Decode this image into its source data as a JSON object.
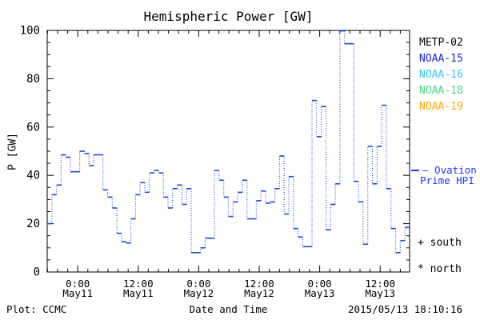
{
  "chart_data": {
    "type": "line",
    "subtype": "histogram-step",
    "title": "Hemispheric Power [GW]",
    "xlabel": "Date and Time",
    "ylabel": "P [GW]",
    "ylim": [
      0,
      100
    ],
    "y_major_step": 20,
    "y_minor_step": 5,
    "grid": "off",
    "legend_position": "right-outside",
    "x_ticks": [
      {
        "time": "0:00",
        "date": "May11"
      },
      {
        "time": "12:00",
        "date": "May11"
      },
      {
        "time": "0:00",
        "date": "May12"
      },
      {
        "time": "12:00",
        "date": "May12"
      },
      {
        "time": "0:00",
        "date": "May13"
      },
      {
        "time": "12:00",
        "date": "May13"
      }
    ],
    "x_minor_ticks_per_major": 6,
    "x_minor_tick_hours": 2,
    "satellite_legend": [
      {
        "label": "METP-02",
        "color": "#000000"
      },
      {
        "label": "NOAA-15",
        "color": "#2222dd"
      },
      {
        "label": "NOAA-16",
        "color": "#33ccff"
      },
      {
        "label": "NOAA-18",
        "color": "#44dd88"
      },
      {
        "label": "NOAA-19",
        "color": "#ffaa00"
      }
    ],
    "symbol_legend": [
      {
        "symbol": "+",
        "label": "south"
      },
      {
        "symbol": "*",
        "label": "north"
      }
    ],
    "series": [
      {
        "name": "Ovation Prime HPI",
        "color": "#2244dd",
        "line_style": "solid horizontal steps with dotted vertical connectors",
        "values": [
          20,
          32,
          36,
          48.5,
          47.5,
          41.5,
          41.5,
          50,
          49,
          44,
          48.5,
          48.5,
          34,
          31,
          26.5,
          16,
          12.5,
          12,
          22,
          32,
          37,
          33,
          41,
          42,
          41,
          31,
          26.5,
          34.5,
          36,
          28,
          34.5,
          8,
          8,
          10,
          14,
          14,
          42,
          38,
          31,
          23,
          29,
          33,
          38,
          22,
          22,
          29.5,
          33.5,
          28.5,
          29,
          34.5,
          48,
          24,
          39.5,
          18,
          14.5,
          10.5,
          10.5,
          71,
          56,
          68.5,
          17.5,
          28,
          36.5,
          99.8,
          94.5,
          94.5,
          37.5,
          29,
          11.5,
          52,
          36.5,
          52,
          69,
          34.5,
          18,
          8,
          13,
          18.5
        ]
      }
    ]
  },
  "ovation_label": {
    "line1": "– Ovation",
    "line2": "Prime HPI",
    "color": "#2233ff"
  },
  "footer": {
    "left": "Plot: CCMC",
    "right": "2015/05/13 18:10:16"
  }
}
